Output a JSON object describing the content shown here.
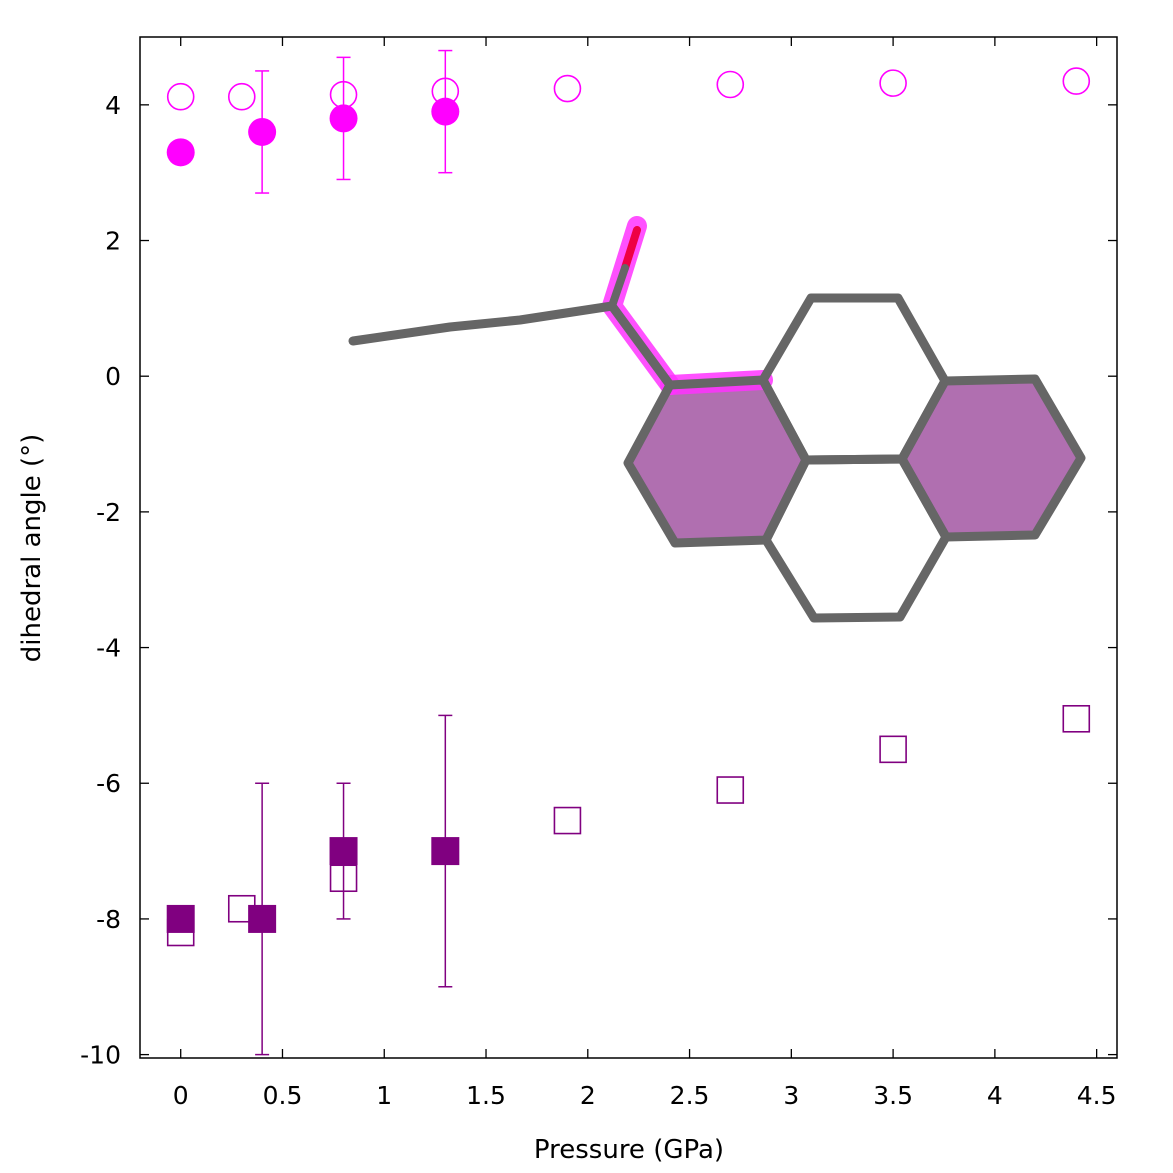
{
  "chart_data": {
    "type": "scatter",
    "title": "",
    "xlabel": "Pressure (GPa)",
    "ylabel": "dihedral angle (°)",
    "xlim": [
      -0.2,
      4.6
    ],
    "ylim": [
      -10.05,
      5.0
    ],
    "xticks": [
      0,
      0.5,
      1,
      1.5,
      2,
      2.5,
      3,
      3.5,
      4,
      4.5
    ],
    "xtick_labels": [
      "0",
      "0.5",
      "1",
      "1.5",
      "2",
      "2.5",
      "3",
      "3.5",
      "4",
      "4.5"
    ],
    "yticks": [
      -10,
      -8,
      -6,
      -4,
      -2,
      0,
      2,
      4
    ],
    "ytick_labels": [
      "-10",
      "-8",
      "-6",
      "-4",
      "-2",
      "0",
      "2",
      "4"
    ],
    "grid": false,
    "legend": "none",
    "series": [
      {
        "marker": "circle-open",
        "color": "#ff00ff",
        "x": [
          0,
          0.3,
          0.8,
          1.3,
          1.9,
          2.7,
          3.5,
          4.4
        ],
        "y": [
          4.12,
          4.12,
          4.15,
          4.2,
          4.24,
          4.3,
          4.32,
          4.35
        ]
      },
      {
        "marker": "circle-filled",
        "color": "#ff00ff",
        "x": [
          0,
          0.4,
          0.8,
          1.3
        ],
        "y": [
          3.3,
          3.6,
          3.8,
          3.9
        ],
        "err": [
          0.1,
          0.9,
          0.9,
          0.9
        ]
      },
      {
        "marker": "square-open",
        "color": "#800080",
        "x": [
          0,
          0.3,
          0.8,
          1.9,
          2.7,
          3.5,
          4.4
        ],
        "y": [
          -8.2,
          -7.85,
          -7.4,
          -6.55,
          -6.1,
          -5.5,
          -5.05
        ]
      },
      {
        "marker": "square-filled",
        "color": "#800080",
        "x": [
          0,
          0.4,
          0.8,
          1.3
        ],
        "y": [
          -8.0,
          -8.0,
          -7.0,
          -7.0
        ],
        "err": [
          0,
          2.0,
          1.0,
          2.0
        ]
      }
    ]
  },
  "inset": {
    "bond_color": "#666666",
    "ring_fill": "#b06fb0",
    "highlight_color": "#ff33ff",
    "oxygen_color": "#ee0044"
  }
}
